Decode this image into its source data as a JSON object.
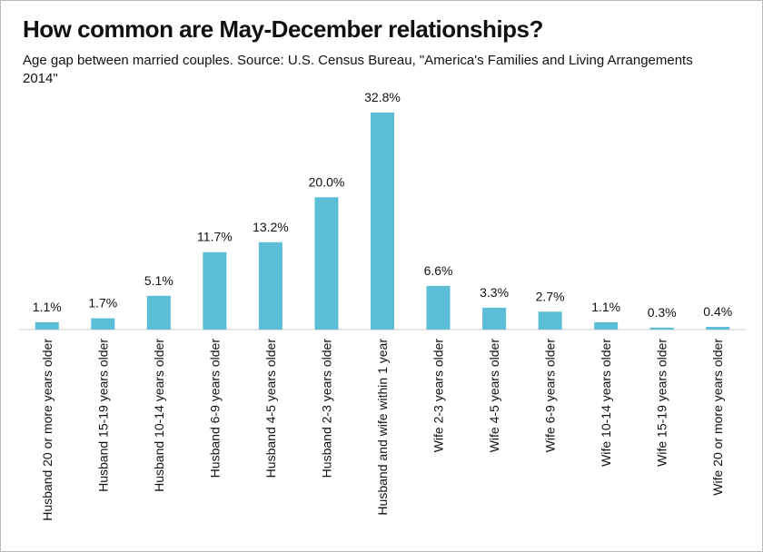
{
  "chart_data": {
    "type": "bar",
    "title": "How common are May-December relationships?",
    "subtitle": "Age gap between married couples. Source: U.S. Census Bureau, \"America's Families and Living Arrangements 2014\"",
    "categories": [
      "Husband 20 or more years older",
      "Husband 15-19 years older",
      "Husband 10-14 years older",
      "Husband 6-9 years older",
      "Husband 4-5 years older",
      "Husband 2-3 years older",
      "Husband and wife within 1 year",
      "Wife 2-3 years older",
      "Wife 4-5 years older",
      "Wife 6-9 years older",
      "Wife 10-14 years older",
      "Wife 15-19 years older",
      "Wife 20 or more years older"
    ],
    "values": [
      1.1,
      1.7,
      5.1,
      11.7,
      13.2,
      20.0,
      32.8,
      6.6,
      3.3,
      2.7,
      1.1,
      0.3,
      0.4
    ],
    "value_labels": [
      "1.1%",
      "1.7%",
      "5.1%",
      "11.7%",
      "13.2%",
      "20.0%",
      "32.8%",
      "6.6%",
      "3.3%",
      "2.7%",
      "1.1%",
      "0.3%",
      "0.4%"
    ],
    "color": "#5bbdd6"
  }
}
